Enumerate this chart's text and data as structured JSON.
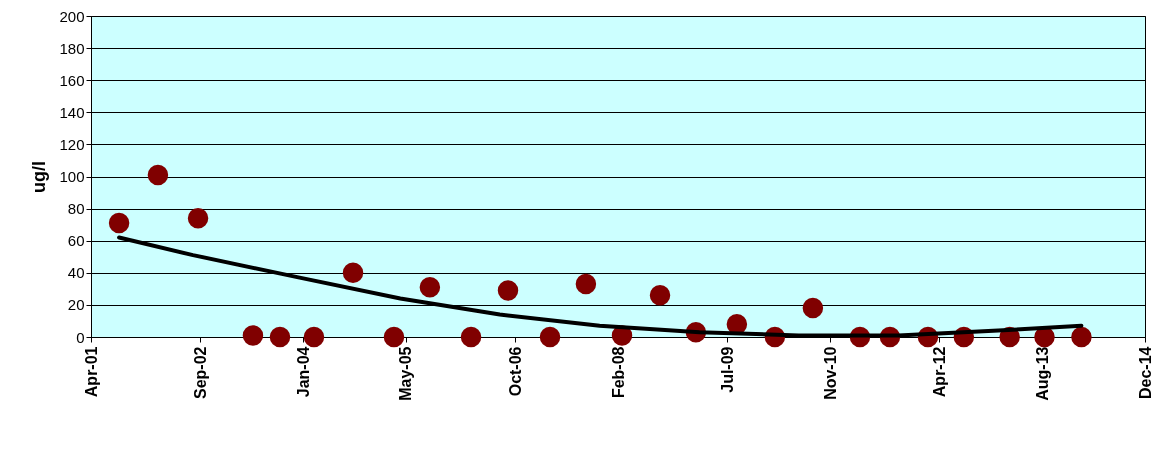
{
  "chart_data": {
    "type": "scatter",
    "ylabel": "ug/l",
    "xlim": [
      "2001-04-01",
      "2014-12-01"
    ],
    "xticks": [
      {
        "value": "2001-04-01",
        "label": "Apr-01"
      },
      {
        "value": "2002-09-01",
        "label": "Sep-02"
      },
      {
        "value": "2004-01-01",
        "label": "Jan-04"
      },
      {
        "value": "2005-05-01",
        "label": "May-05"
      },
      {
        "value": "2006-10-01",
        "label": "Oct-06"
      },
      {
        "value": "2008-02-01",
        "label": "Feb-08"
      },
      {
        "value": "2009-07-01",
        "label": "Jul-09"
      },
      {
        "value": "2010-11-01",
        "label": "Nov-10"
      },
      {
        "value": "2012-04-01",
        "label": "Apr-12"
      },
      {
        "value": "2013-08-01",
        "label": "Aug-13"
      },
      {
        "value": "2014-12-01",
        "label": "Dec-14"
      }
    ],
    "ylim": [
      0,
      200
    ],
    "yticks": [
      0,
      20,
      40,
      60,
      80,
      100,
      120,
      140,
      160,
      180,
      200
    ],
    "grid": "y",
    "marker": "circle",
    "series": [
      {
        "color": "#800000",
        "x": [
          "2001-08-12",
          "2002-02-12",
          "2002-08-21",
          "2003-05-08",
          "2003-09-13",
          "2004-02-21",
          "2004-08-24",
          "2005-03-06",
          "2005-08-23",
          "2006-03-06",
          "2006-08-28",
          "2007-03-15",
          "2007-09-01",
          "2008-02-19",
          "2008-08-17",
          "2009-02-03",
          "2009-08-16",
          "2010-02-12",
          "2010-08-11",
          "2011-03-22",
          "2011-08-11",
          "2012-02-07",
          "2012-07-26",
          "2013-02-28",
          "2013-08-12",
          "2014-02-03"
        ],
        "values": [
          71,
          101,
          74,
          1,
          0,
          0,
          40,
          0,
          31,
          0,
          29,
          0,
          33,
          1,
          26,
          3,
          8,
          0,
          18,
          0,
          0,
          0,
          0,
          0,
          0,
          0
        ]
      },
      {
        "type": "line",
        "color": "#000000",
        "marker": "none",
        "x": [
          "2001-08-12",
          "2002-07-28",
          "2003-12-15",
          "2005-04-05",
          "2006-07-20",
          "2007-11-05",
          "2009-02-20",
          "2010-06-05",
          "2011-09-20",
          "2013-01-05",
          "2014-02-03"
        ],
        "values": [
          62,
          51,
          37,
          24,
          14,
          7,
          3,
          1,
          1,
          4,
          7
        ]
      }
    ]
  }
}
